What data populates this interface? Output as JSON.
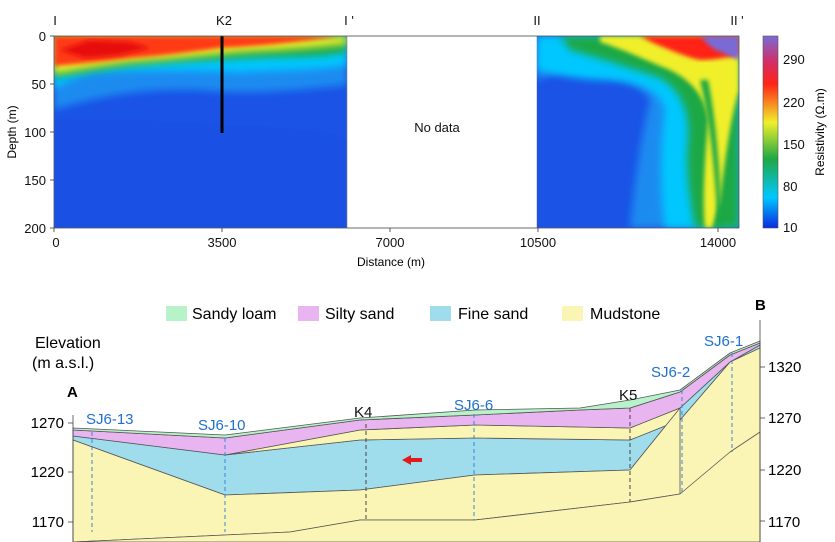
{
  "top_panel": {
    "profile_marks": [
      "I",
      "K2",
      "I '",
      "II",
      "II '"
    ],
    "x_axis": {
      "label": "Distance (m)",
      "ticks": [
        "0",
        "3500",
        "7000",
        "10500",
        "14000"
      ]
    },
    "y_axis": {
      "label": "Depth (m)",
      "ticks": [
        "0",
        "50",
        "100",
        "150",
        "200"
      ]
    },
    "no_data_label": "No data",
    "colorbar": {
      "label": "Resistivity (Ω.m)",
      "ticks": [
        "290",
        "220",
        "150",
        "80",
        "10"
      ]
    },
    "colors": {
      "low": "#1a53e6",
      "mid_low": "#00c8ff",
      "mid": "#1fa844",
      "mid_high": "#f0ef2a",
      "high": "#ff2418",
      "max": "#7a6ad6"
    }
  },
  "bottom_panel": {
    "legend": [
      {
        "label": "Sandy loam",
        "color": "#b8f2c8"
      },
      {
        "label": "Silty sand",
        "color": "#e8b5f0"
      },
      {
        "label": "Fine sand",
        "color": "#9fdcec"
      },
      {
        "label": "Mudstone",
        "color": "#fbf5b5"
      }
    ],
    "elevation_label_line1": "Elevation",
    "elevation_label_line2": "(m  a.s.l.)",
    "end_labels": {
      "left": "A",
      "right": "B"
    },
    "left_axis_ticks": [
      "1270",
      "1220",
      "1170"
    ],
    "right_axis_ticks": [
      "1320",
      "1270",
      "1220",
      "1170"
    ],
    "boreholes": [
      "SJ6-13",
      "SJ6-10",
      "SJ6-6",
      "SJ6-2",
      "SJ6-1"
    ],
    "site_labels": [
      "K4",
      "K5"
    ],
    "colors": {
      "borehole_text": "#1f6fd1",
      "borehole_line": "#3a86d8",
      "arrow": "#e01b1b"
    }
  }
}
